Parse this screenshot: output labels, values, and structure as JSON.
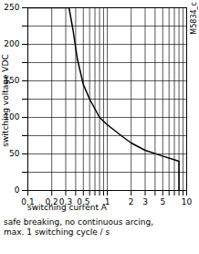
{
  "chart_data": {
    "type": "line",
    "xlabel": "switching current A",
    "ylabel": "switching voltage VDC",
    "annotation": "M5834_c",
    "caption": [
      "safe breaking, no continuous arcing,",
      "max. 1 switching cycle / s"
    ],
    "x": [
      0.1,
      0.33,
      0.37,
      0.42,
      0.5,
      0.6,
      0.8,
      1,
      1.5,
      2,
      3,
      5,
      8,
      8
    ],
    "values": [
      250,
      250,
      220,
      180,
      145,
      125,
      100,
      90,
      75,
      65,
      55,
      47,
      40,
      0
    ],
    "color": "#000000",
    "log": "x",
    "grid": true,
    "xlim": [
      0.1,
      10
    ],
    "xticks": [
      {
        "value": 0.1,
        "label": "0,1"
      },
      {
        "value": 0.2,
        "label": "0,2"
      },
      {
        "value": 0.3,
        "label": "0,3"
      },
      {
        "value": 0.4,
        "label": null
      },
      {
        "value": 0.5,
        "label": "0,5"
      },
      {
        "value": 0.6,
        "label": null
      },
      {
        "value": 0.7,
        "label": null
      },
      {
        "value": 0.8,
        "label": null
      },
      {
        "value": 0.9,
        "label": null
      },
      1,
      2,
      3,
      {
        "value": 4,
        "label": null
      },
      5,
      {
        "value": 6,
        "label": null
      },
      {
        "value": 7,
        "label": null
      },
      {
        "value": 8,
        "label": null
      },
      {
        "value": 9,
        "label": null
      },
      10
    ],
    "ylim": [
      0,
      250
    ],
    "yticks": [
      0,
      {
        "value": 25,
        "label": null
      },
      50,
      {
        "value": 75,
        "label": null
      },
      100,
      {
        "value": 125,
        "label": null
      },
      150,
      {
        "value": 175,
        "label": null
      },
      200,
      {
        "value": 225,
        "label": null
      },
      250
    ]
  }
}
